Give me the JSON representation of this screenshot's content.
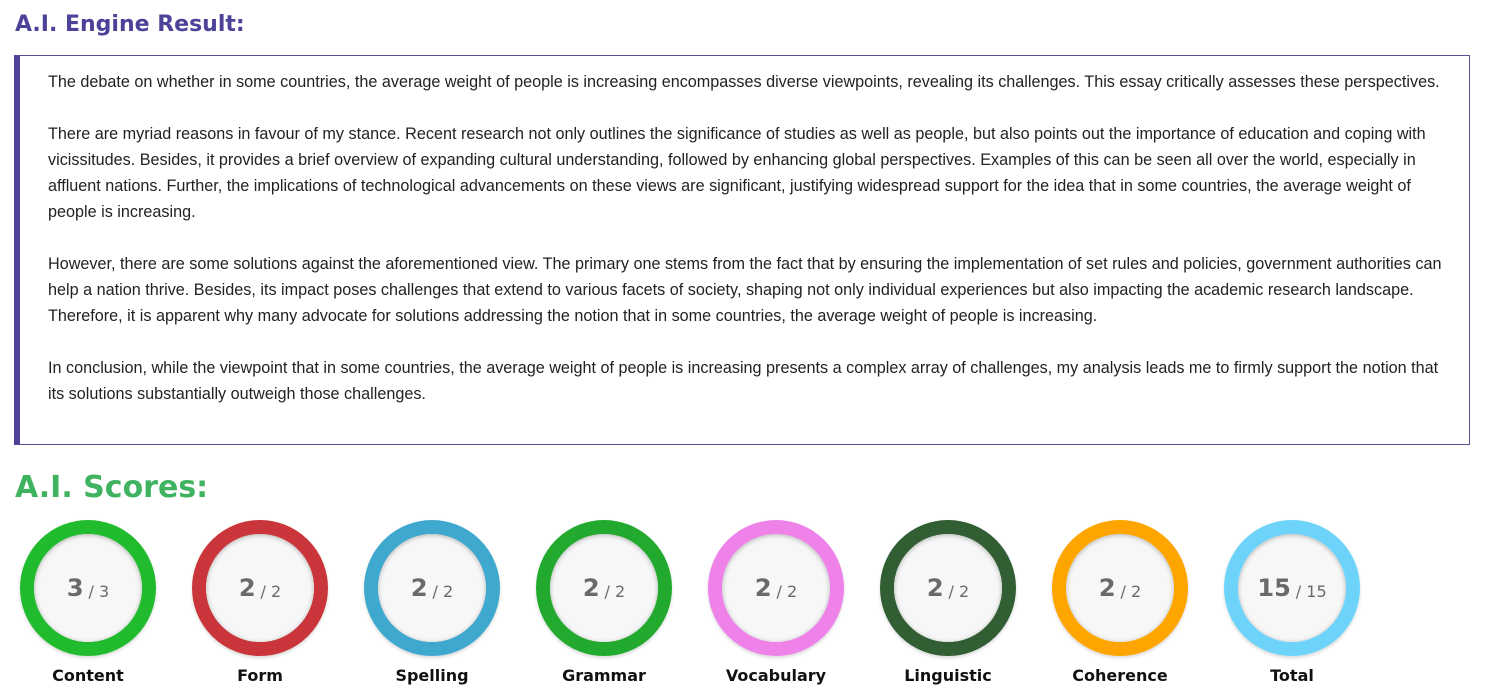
{
  "engine_result": {
    "title": "A.I. Engine Result:",
    "paragraphs": [
      "The debate on whether in some countries, the average weight of people is increasing encompasses diverse viewpoints, revealing its challenges. This essay critically assesses these perspectives.",
      "There are myriad reasons in favour of my stance. Recent research not only outlines the significance of studies as well as people, but also points out the importance of education and coping with vicissitudes. Besides, it provides a brief overview of expanding cultural understanding, followed by enhancing global perspectives. Examples of this can be seen all over the world, especially in affluent nations. Further, the implications of technological advancements on these views are significant, justifying widespread support for the idea that in some countries, the average weight of people is increasing.",
      "However, there are some solutions against the aforementioned view. The primary one stems from the fact that by ensuring the implementation of set rules and policies, government authorities can help a nation thrive. Besides, its impact poses challenges that extend to various facets of society, shaping not only individual experiences but also impacting the academic research landscape. Therefore, it is apparent why many advocate for solutions addressing the notion that in some countries, the average weight of people is increasing.",
      "In conclusion, while the viewpoint that in some countries, the average weight of people is increasing presents a complex array of challenges, my analysis leads me to firmly support the notion that its solutions substantially outweigh those challenges."
    ]
  },
  "scores": {
    "title": "A.I. Scores:",
    "items": [
      {
        "label": "Content",
        "value": "3",
        "max": "/ 3",
        "color": "#21bb2e"
      },
      {
        "label": "Form",
        "value": "2",
        "max": "/ 2",
        "color": "#c9353a"
      },
      {
        "label": "Spelling",
        "value": "2",
        "max": "/ 2",
        "color": "#3fa8ce"
      },
      {
        "label": "Grammar",
        "value": "2",
        "max": "/ 2",
        "color": "#21aa2d"
      },
      {
        "label": "Vocabulary",
        "value": "2",
        "max": "/ 2",
        "color": "#ee82e9"
      },
      {
        "label": "Linguistic",
        "value": "2",
        "max": "/ 2",
        "color": "#315e33"
      },
      {
        "label": "Coherence",
        "value": "2",
        "max": "/ 2",
        "color": "#ffa500"
      },
      {
        "label": "Total",
        "value": "15",
        "max": "/ 15",
        "color": "#6dd3fb"
      }
    ]
  }
}
